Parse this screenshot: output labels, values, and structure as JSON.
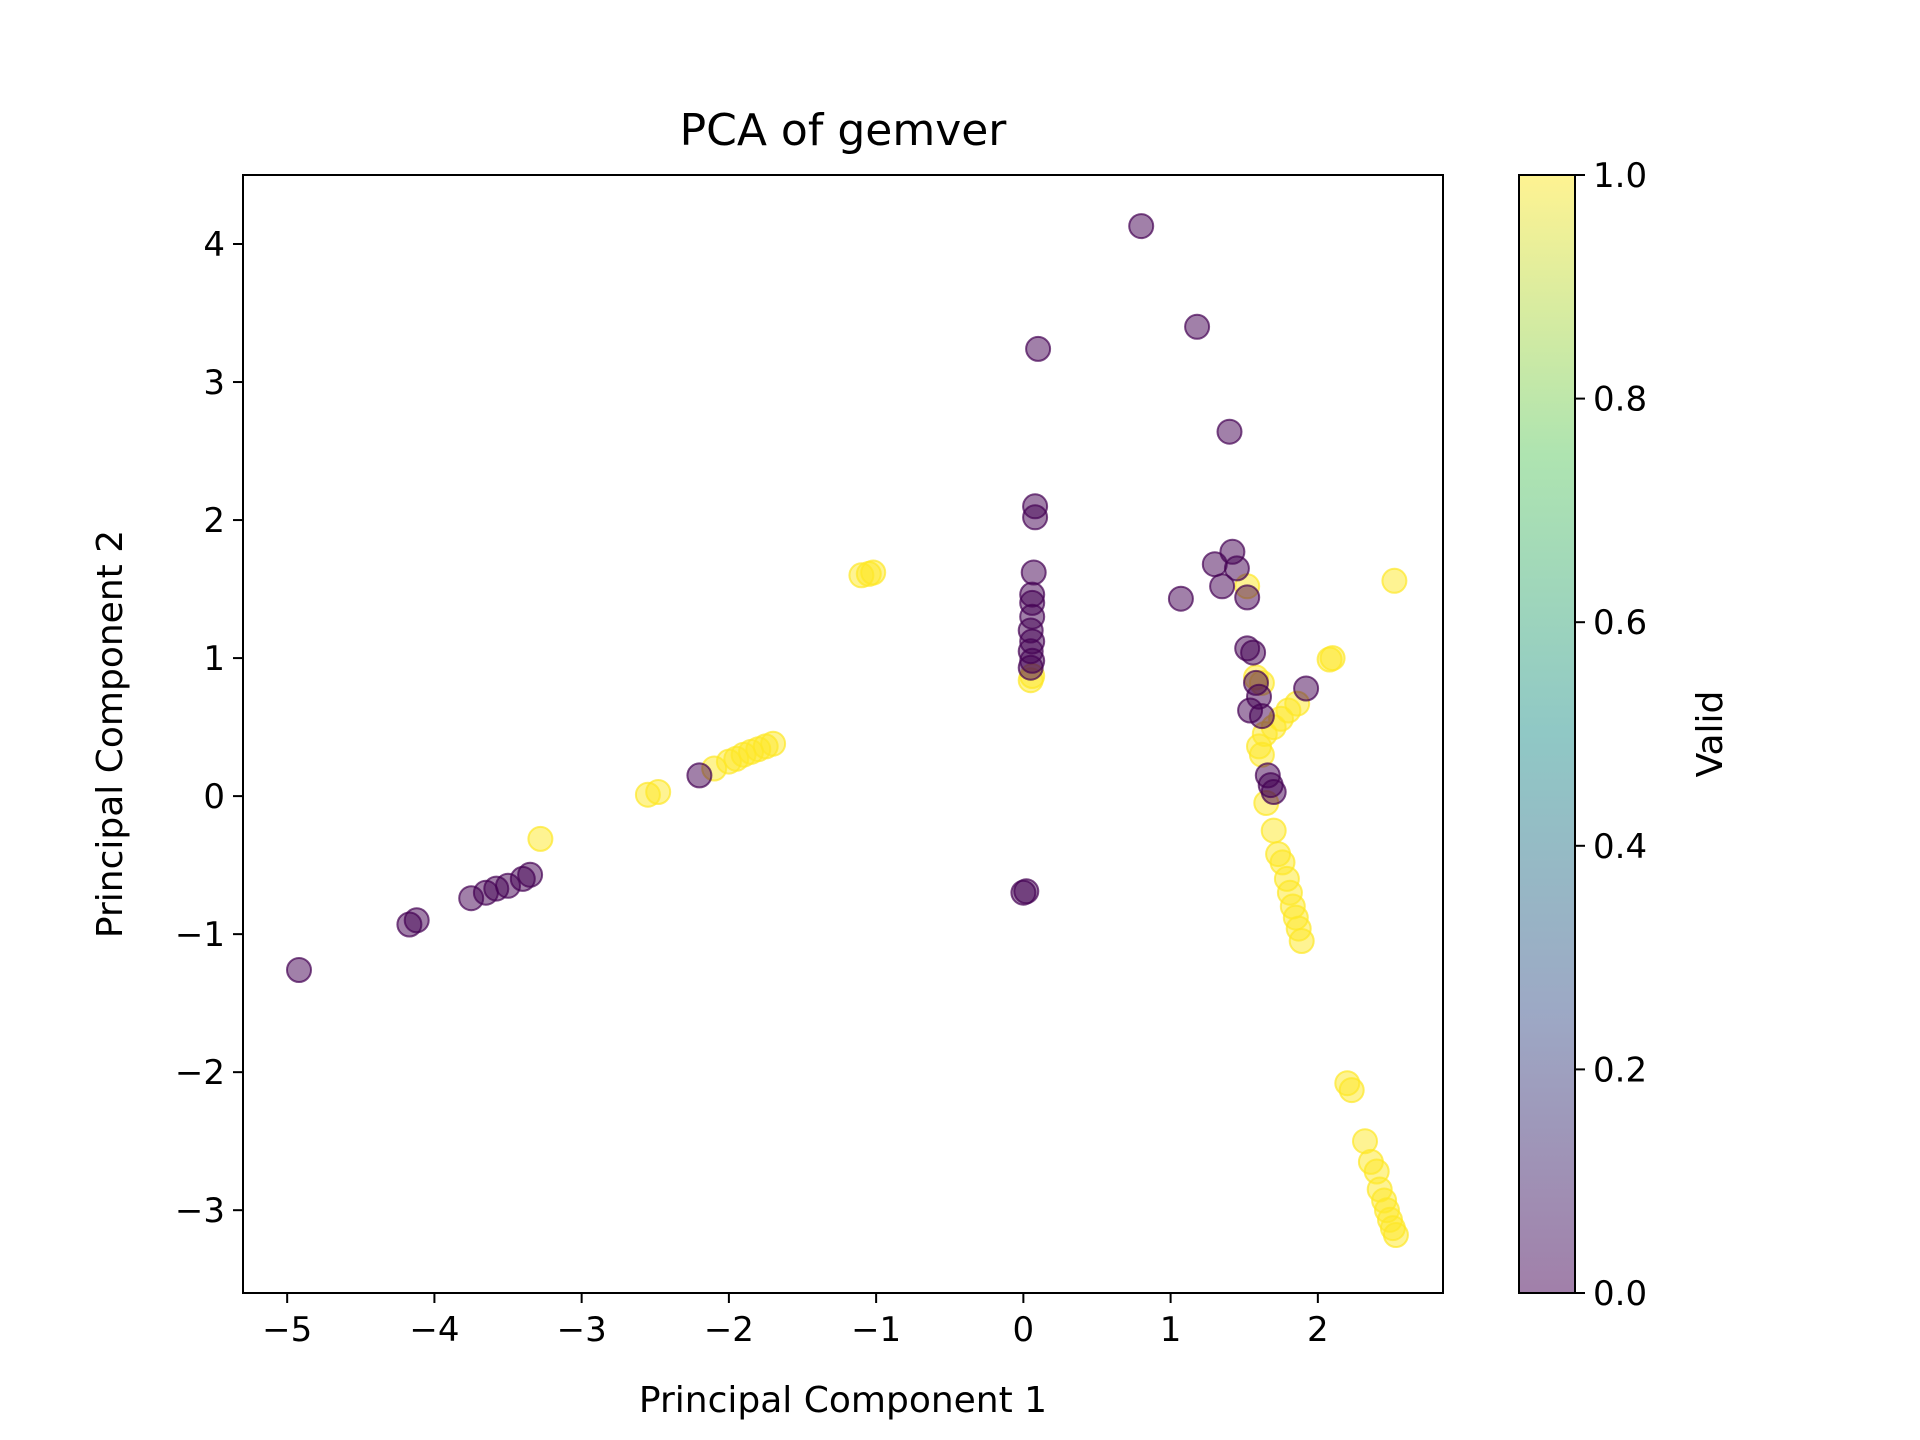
{
  "chart_data": {
    "type": "scatter",
    "title": "PCA of gemver",
    "xlabel": "Principal Component 1",
    "ylabel": "Principal Component 2",
    "xlim": [
      -5.3,
      2.85
    ],
    "ylim": [
      -3.6,
      4.5
    ],
    "xticks": [
      -5,
      -4,
      -3,
      -2,
      -1,
      0,
      1,
      2
    ],
    "yticks": [
      -3,
      -2,
      -1,
      0,
      1,
      2,
      3,
      4
    ],
    "grid": false,
    "legend": "none",
    "point_alpha": 0.5,
    "colorbar": {
      "label": "Valid",
      "range": [
        0.0,
        1.0
      ],
      "ticks": [
        "0.0",
        "0.2",
        "0.4",
        "0.6",
        "0.8",
        "1.0"
      ],
      "colormap": [
        "#440154",
        "#3b528b",
        "#21918c",
        "#5ec962",
        "#fde725"
      ]
    },
    "groups": [
      {
        "valid": 1,
        "color": "#fde725",
        "points": [
          [
            -1.1,
            1.6
          ],
          [
            -1.05,
            1.61
          ],
          [
            -1.02,
            1.62
          ],
          [
            -2.55,
            0.01
          ],
          [
            -2.48,
            0.03
          ],
          [
            -2.1,
            0.2
          ],
          [
            -2.0,
            0.25
          ],
          [
            -1.95,
            0.27
          ],
          [
            -1.9,
            0.3
          ],
          [
            -1.85,
            0.32
          ],
          [
            -1.8,
            0.34
          ],
          [
            -1.75,
            0.36
          ],
          [
            -1.7,
            0.38
          ],
          [
            -3.28,
            -0.31
          ],
          [
            0.05,
            0.84
          ],
          [
            0.06,
            0.87
          ],
          [
            1.52,
            1.52
          ],
          [
            2.52,
            1.56
          ],
          [
            2.08,
            0.99
          ],
          [
            2.1,
            1.0
          ],
          [
            1.58,
            0.86
          ],
          [
            1.62,
            0.82
          ],
          [
            1.64,
            0.45
          ],
          [
            1.7,
            0.5
          ],
          [
            1.75,
            0.56
          ],
          [
            1.8,
            0.62
          ],
          [
            1.86,
            0.67
          ],
          [
            1.6,
            0.36
          ],
          [
            1.62,
            0.3
          ],
          [
            1.65,
            -0.05
          ],
          [
            1.7,
            -0.25
          ],
          [
            1.73,
            -0.42
          ],
          [
            1.76,
            -0.48
          ],
          [
            1.79,
            -0.6
          ],
          [
            1.81,
            -0.7
          ],
          [
            1.83,
            -0.8
          ],
          [
            1.85,
            -0.88
          ],
          [
            1.87,
            -0.96
          ],
          [
            1.89,
            -1.05
          ],
          [
            2.2,
            -2.08
          ],
          [
            2.23,
            -2.13
          ],
          [
            2.32,
            -2.5
          ],
          [
            2.36,
            -2.65
          ],
          [
            2.4,
            -2.72
          ],
          [
            2.42,
            -2.85
          ],
          [
            2.45,
            -2.93
          ],
          [
            2.47,
            -3.0
          ],
          [
            2.49,
            -3.07
          ],
          [
            2.51,
            -3.13
          ],
          [
            2.53,
            -3.18
          ]
        ]
      },
      {
        "valid": 0,
        "color": "#440154",
        "points": [
          [
            0.8,
            4.13
          ],
          [
            0.1,
            3.24
          ],
          [
            1.18,
            3.4
          ],
          [
            1.4,
            2.64
          ],
          [
            0.08,
            2.1
          ],
          [
            0.08,
            2.02
          ],
          [
            0.07,
            1.62
          ],
          [
            0.06,
            1.46
          ],
          [
            0.06,
            1.4
          ],
          [
            0.06,
            1.3
          ],
          [
            0.05,
            1.2
          ],
          [
            0.06,
            1.12
          ],
          [
            0.05,
            1.05
          ],
          [
            0.06,
            0.98
          ],
          [
            0.05,
            0.93
          ],
          [
            1.3,
            1.68
          ],
          [
            1.42,
            1.77
          ],
          [
            1.45,
            1.65
          ],
          [
            1.35,
            1.52
          ],
          [
            1.07,
            1.43
          ],
          [
            1.52,
            1.44
          ],
          [
            1.52,
            1.07
          ],
          [
            1.56,
            1.04
          ],
          [
            1.58,
            0.82
          ],
          [
            1.6,
            0.72
          ],
          [
            1.54,
            0.62
          ],
          [
            1.62,
            0.58
          ],
          [
            1.66,
            0.15
          ],
          [
            1.68,
            0.08
          ],
          [
            1.7,
            0.03
          ],
          [
            1.92,
            0.78
          ],
          [
            -2.2,
            0.15
          ],
          [
            -3.75,
            -0.74
          ],
          [
            -3.65,
            -0.7
          ],
          [
            -3.58,
            -0.67
          ],
          [
            -3.5,
            -0.65
          ],
          [
            -3.4,
            -0.6
          ],
          [
            -3.35,
            -0.57
          ],
          [
            -4.17,
            -0.93
          ],
          [
            -4.12,
            -0.9
          ],
          [
            -4.92,
            -1.26
          ],
          [
            0.0,
            -0.7
          ],
          [
            0.02,
            -0.69
          ]
        ]
      }
    ]
  }
}
